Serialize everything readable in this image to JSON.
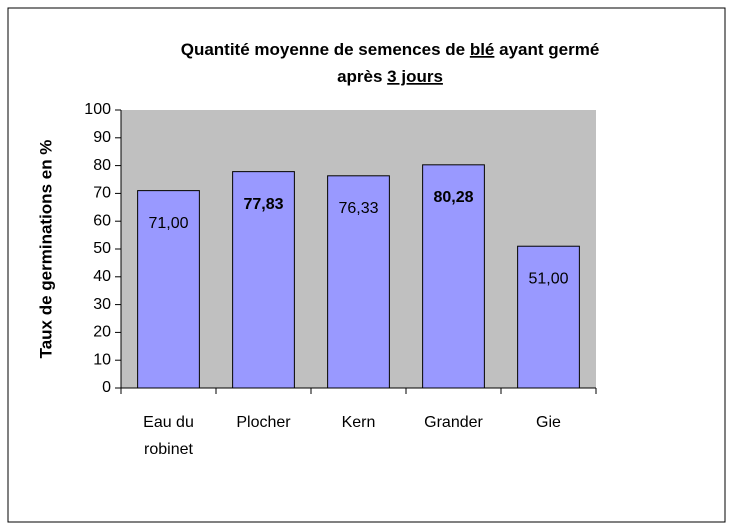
{
  "chart_data": {
    "type": "bar",
    "title": [
      [
        {
          "text": "Quantité moyenne de semences de "
        },
        {
          "text": "blé",
          "underline": true
        },
        {
          "text": " ayant germé"
        }
      ],
      [
        {
          "text": "après "
        },
        {
          "text": "3 jours",
          "underline": true
        }
      ]
    ],
    "ylabel": "Taux de germinations en %",
    "categories": [
      [
        "Eau du",
        "robinet"
      ],
      [
        "Plocher"
      ],
      [
        "Kern"
      ],
      [
        "Grander"
      ],
      [
        "Gie"
      ]
    ],
    "values": [
      71.0,
      77.83,
      76.33,
      80.28,
      51.0
    ],
    "value_labels": [
      "71,00",
      "77,83",
      "76,33",
      "80,28",
      "51,00"
    ],
    "value_labels_bold": [
      false,
      true,
      false,
      true,
      false
    ],
    "color": "#9999ff",
    "plot_background": "#c0c0c0",
    "ylim": [
      0,
      100
    ],
    "yticks": [
      0,
      10,
      20,
      30,
      40,
      50,
      60,
      70,
      80,
      90,
      100
    ],
    "grid": false
  }
}
